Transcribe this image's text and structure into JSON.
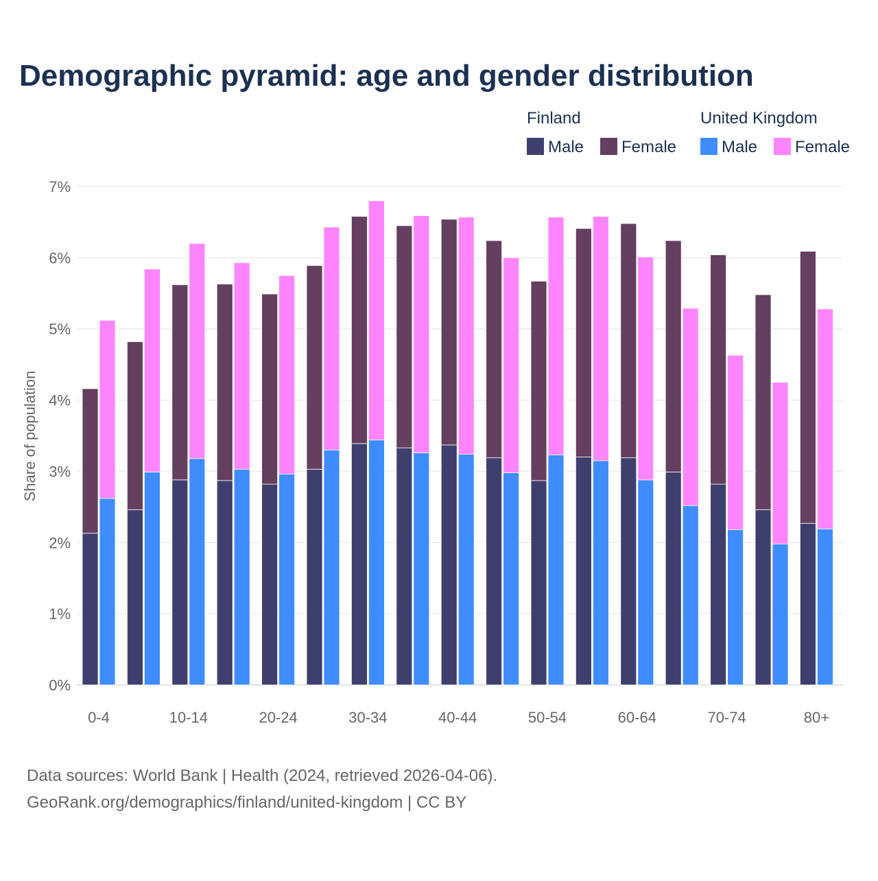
{
  "chart_data": {
    "type": "bar",
    "title": "Demographic pyramid: age and gender distribution",
    "ylabel": "Share of population",
    "xlabel": "",
    "ylim": [
      0,
      7
    ],
    "yticks": [
      "0%",
      "1%",
      "2%",
      "3%",
      "4%",
      "5%",
      "6%",
      "7%"
    ],
    "grid": true,
    "stacked": true,
    "legend_position": "top-right",
    "categories": [
      "0-4",
      "5-9",
      "10-14",
      "15-19",
      "20-24",
      "25-29",
      "30-34",
      "35-39",
      "40-44",
      "45-49",
      "50-54",
      "55-59",
      "60-64",
      "65-69",
      "70-74",
      "75-79",
      "80+"
    ],
    "xtick_labels": [
      "0-4",
      "10-14",
      "20-24",
      "30-34",
      "40-44",
      "50-54",
      "60-64",
      "70-74",
      "80+"
    ],
    "groups": [
      {
        "name": "Finland",
        "series": [
          {
            "name": "Male",
            "color": "#3f3f6e",
            "values": [
              2.13,
              2.46,
              2.88,
              2.87,
              2.82,
              3.03,
              3.39,
              3.33,
              3.37,
              3.19,
              2.87,
              3.2,
              3.19,
              2.99,
              2.82,
              2.46,
              2.27
            ]
          },
          {
            "name": "Female",
            "color": "#653f5f",
            "values": [
              2.03,
              2.36,
              2.74,
              2.76,
              2.67,
              2.86,
              3.19,
              3.12,
              3.17,
              3.05,
              2.8,
              3.21,
              3.29,
              3.25,
              3.22,
              3.02,
              3.82
            ]
          }
        ]
      },
      {
        "name": "United Kingdom",
        "series": [
          {
            "name": "Male",
            "color": "#3f8cff",
            "values": [
              2.62,
              2.99,
              3.18,
              3.03,
              2.96,
              3.3,
              3.44,
              3.26,
              3.24,
              2.98,
              3.23,
              3.15,
              2.88,
              2.52,
              2.18,
              1.98,
              2.19
            ]
          },
          {
            "name": "Female",
            "color": "#ff85ff",
            "values": [
              2.5,
              2.85,
              3.02,
              2.9,
              2.79,
              3.13,
              3.36,
              3.33,
              3.33,
              3.02,
              3.34,
              3.43,
              3.13,
              2.77,
              2.45,
              2.27,
              3.09
            ]
          }
        ]
      }
    ]
  },
  "footer": {
    "line1": "Data sources: World Bank | Health (2024, retrieved 2026-04-06).",
    "line2": "GeoRank.org/demographics/finland/united-kingdom | CC BY"
  }
}
